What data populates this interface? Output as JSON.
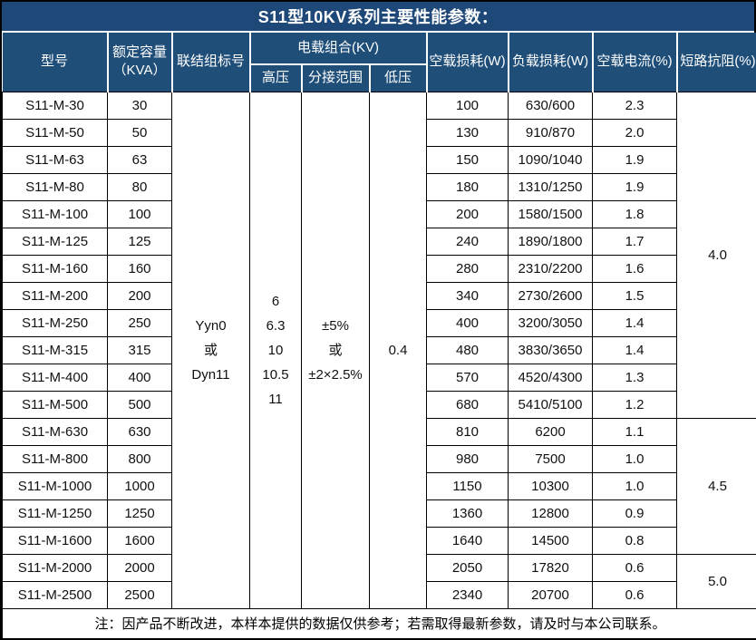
{
  "title": "S11型10KV系列主要性能参数：",
  "header": {
    "model": "型号",
    "capacity": "额定容量\n（KVA）",
    "connection": "联结组标号",
    "load_group": "电载组合(KV)",
    "hv": "高压",
    "tap": "分接范围",
    "lv": "低压",
    "no_load_loss": "空载损耗(W)",
    "load_loss": "负载损耗(W)",
    "no_load_current": "空载电流(%)",
    "short_circuit": "短路抗阻(%)"
  },
  "merged": {
    "connection_lines": [
      "Yyn0",
      "或",
      "Dyn11"
    ],
    "hv_lines": [
      "6",
      "6.3",
      "10",
      "10.5",
      "11"
    ],
    "tap_lines": [
      "±5%",
      "或",
      "±2×2.5%"
    ],
    "lv": "0.4"
  },
  "short_circuit_groups": [
    {
      "value": "4.0",
      "rows": 12
    },
    {
      "value": "4.5",
      "rows": 5
    },
    {
      "value": "5.0",
      "rows": 2
    }
  ],
  "rows": [
    {
      "model": "S11-M-30",
      "capacity": "30",
      "no_load_loss": "100",
      "load_loss": "630/600",
      "no_load_current": "2.3"
    },
    {
      "model": "S11-M-50",
      "capacity": "50",
      "no_load_loss": "130",
      "load_loss": "910/870",
      "no_load_current": "2.0"
    },
    {
      "model": "S11-M-63",
      "capacity": "63",
      "no_load_loss": "150",
      "load_loss": "1090/1040",
      "no_load_current": "1.9"
    },
    {
      "model": "S11-M-80",
      "capacity": "80",
      "no_load_loss": "180",
      "load_loss": "1310/1250",
      "no_load_current": "1.9"
    },
    {
      "model": "S11-M-100",
      "capacity": "100",
      "no_load_loss": "200",
      "load_loss": "1580/1500",
      "no_load_current": "1.8"
    },
    {
      "model": "S11-M-125",
      "capacity": "125",
      "no_load_loss": "240",
      "load_loss": "1890/1800",
      "no_load_current": "1.7"
    },
    {
      "model": "S11-M-160",
      "capacity": "160",
      "no_load_loss": "280",
      "load_loss": "2310/2200",
      "no_load_current": "1.6"
    },
    {
      "model": "S11-M-200",
      "capacity": "200",
      "no_load_loss": "340",
      "load_loss": "2730/2600",
      "no_load_current": "1.5"
    },
    {
      "model": "S11-M-250",
      "capacity": "250",
      "no_load_loss": "400",
      "load_loss": "3200/3050",
      "no_load_current": "1.4"
    },
    {
      "model": "S11-M-315",
      "capacity": "315",
      "no_load_loss": "480",
      "load_loss": "3830/3650",
      "no_load_current": "1.4"
    },
    {
      "model": "S11-M-400",
      "capacity": "400",
      "no_load_loss": "570",
      "load_loss": "4520/4300",
      "no_load_current": "1.3"
    },
    {
      "model": "S11-M-500",
      "capacity": "500",
      "no_load_loss": "680",
      "load_loss": "5410/5100",
      "no_load_current": "1.2"
    },
    {
      "model": "S11-M-630",
      "capacity": "630",
      "no_load_loss": "810",
      "load_loss": "6200",
      "no_load_current": "1.1"
    },
    {
      "model": "S11-M-800",
      "capacity": "800",
      "no_load_loss": "980",
      "load_loss": "7500",
      "no_load_current": "1.0"
    },
    {
      "model": "S11-M-1000",
      "capacity": "1000",
      "no_load_loss": "1150",
      "load_loss": "10300",
      "no_load_current": "1.0"
    },
    {
      "model": "S11-M-1250",
      "capacity": "1250",
      "no_load_loss": "1360",
      "load_loss": "12800",
      "no_load_current": "0.9"
    },
    {
      "model": "S11-M-1600",
      "capacity": "1600",
      "no_load_loss": "1640",
      "load_loss": "14500",
      "no_load_current": "0.8"
    },
    {
      "model": "S11-M-2000",
      "capacity": "2000",
      "no_load_loss": "2050",
      "load_loss": "17820",
      "no_load_current": "0.6"
    },
    {
      "model": "S11-M-2500",
      "capacity": "2500",
      "no_load_loss": "2340",
      "load_loss": "20700",
      "no_load_current": "0.6"
    }
  ],
  "note": "注：因产品不断改进，本样本提供的数据仅供参考；若需取得最新参数，请及时与本公司联系。",
  "colors": {
    "title_bg": "#1E4878",
    "header_bg": "#1F4E79",
    "stripe": "#9DC3E6",
    "border": "#000000",
    "header_text": "#FFFFFF"
  }
}
